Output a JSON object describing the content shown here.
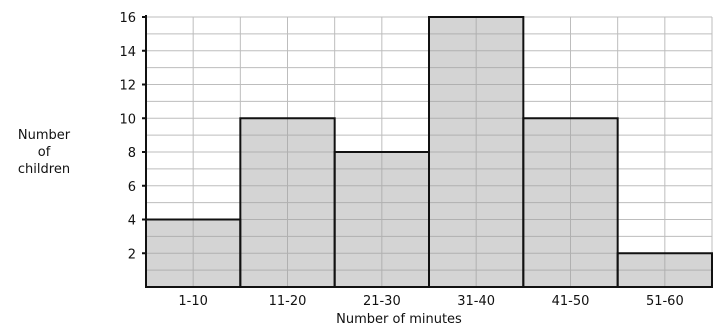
{
  "chart_data": {
    "type": "bar",
    "title": "",
    "xlabel": "Number of minutes",
    "ylabel": [
      "Number",
      "of",
      "children"
    ],
    "categories": [
      "1-10",
      "11-20",
      "21-30",
      "31-40",
      "41-50",
      "51-60"
    ],
    "values": [
      4,
      10,
      8,
      16,
      10,
      2
    ],
    "ylim": [
      0,
      16
    ],
    "yticks": [
      2,
      4,
      6,
      8,
      10,
      12,
      14,
      16
    ],
    "grid": true,
    "colors": {
      "bar_fill": "#c8c8c8",
      "bar_stroke": "#111111",
      "grid": "#bdbdbd"
    }
  }
}
